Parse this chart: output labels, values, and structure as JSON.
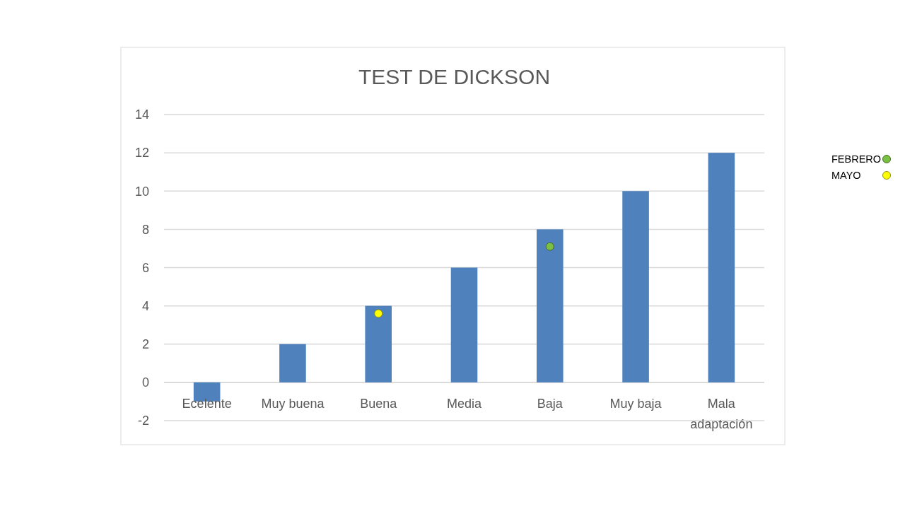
{
  "chart_data": {
    "type": "bar",
    "title": "TEST DE DICKSON",
    "categories": [
      "Ecelente",
      "Muy buena",
      "Buena",
      "Media",
      "Baja",
      "Muy baja",
      "Mala adaptación"
    ],
    "ylim": [
      -2,
      14
    ],
    "yticks": [
      -2,
      0,
      2,
      4,
      6,
      8,
      10,
      12,
      14
    ],
    "grid": "y",
    "legend": "right",
    "marker": "circle",
    "series": [
      {
        "color": "#4f81bd",
        "values": [
          -1,
          2,
          4,
          6,
          8,
          10,
          12
        ]
      },
      {
        "type": "scatter",
        "name": "FEBRERO",
        "color": "#7ac143",
        "values": [
          null,
          null,
          null,
          null,
          7.1,
          null,
          null
        ]
      },
      {
        "type": "scatter",
        "name": "MAYO",
        "color": "#ffff00",
        "values": [
          null,
          null,
          3.6,
          null,
          null,
          null,
          null
        ]
      }
    ]
  }
}
